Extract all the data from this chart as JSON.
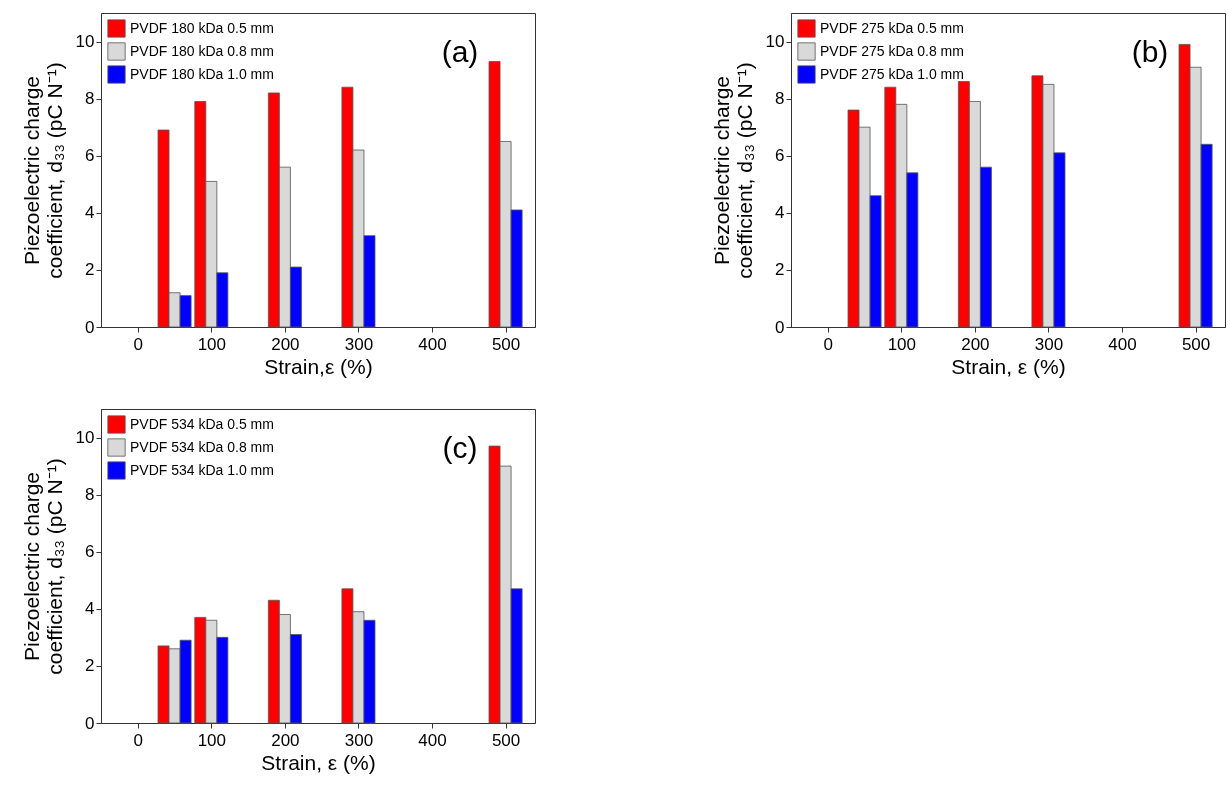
{
  "chart_data": [
    {
      "type": "bar",
      "x": [
        50,
        100,
        200,
        300,
        500
      ],
      "xlabel": "Strain,ε (%)",
      "ylabel": "Piezoelectric charge coefficient, d₃₃ (pC N⁻¹)",
      "annotations": [
        "(a)"
      ],
      "xlim": [
        -50,
        540
      ],
      "xticks": [
        0,
        100,
        200,
        300,
        400,
        500
      ],
      "ylim": [
        0,
        11
      ],
      "yticks": [
        0,
        2,
        4,
        6,
        8,
        10
      ],
      "legend": "top left",
      "series": [
        {
          "name": "PVDF 180 kDa 0.5 mm",
          "color": "#ff0000",
          "values": [
            6.9,
            7.9,
            8.2,
            8.4,
            9.3
          ]
        },
        {
          "name": "PVDF 180 kDa 0.8 mm",
          "color": "#d9d9d9",
          "values": [
            1.2,
            5.1,
            5.6,
            6.2,
            6.5
          ]
        },
        {
          "name": "PVDF 180 kDa 1.0 mm",
          "color": "#0000ff",
          "values": [
            1.1,
            1.9,
            2.1,
            3.2,
            4.1
          ]
        }
      ]
    },
    {
      "type": "bar",
      "x": [
        50,
        100,
        200,
        300,
        500
      ],
      "xlabel": "Strain, ε (%)",
      "ylabel": "Piezoelectric charge coefficient, d₃₃ (pC N⁻¹)",
      "annotations": [
        "(b)"
      ],
      "xlim": [
        -50,
        540
      ],
      "xticks": [
        0,
        100,
        200,
        300,
        400,
        500
      ],
      "ylim": [
        0,
        11
      ],
      "yticks": [
        0,
        2,
        4,
        6,
        8,
        10
      ],
      "legend": "top left",
      "series": [
        {
          "name": "PVDF 275 kDa 0.5 mm",
          "color": "#ff0000",
          "values": [
            7.6,
            8.4,
            8.6,
            8.8,
            9.9
          ]
        },
        {
          "name": "PVDF 275 kDa 0.8 mm",
          "color": "#d9d9d9",
          "values": [
            7.0,
            7.8,
            7.9,
            8.5,
            9.1
          ]
        },
        {
          "name": "PVDF 275 kDa 1.0 mm",
          "color": "#0000ff",
          "values": [
            4.6,
            5.4,
            5.6,
            6.1,
            6.4
          ]
        }
      ]
    },
    {
      "type": "bar",
      "x": [
        50,
        100,
        200,
        300,
        500
      ],
      "xlabel": "Strain, ε (%)",
      "ylabel": "Piezoelectric charge coefficient, d₃₃ (pC N⁻¹)",
      "annotations": [
        "(c)"
      ],
      "xlim": [
        -50,
        540
      ],
      "xticks": [
        0,
        100,
        200,
        300,
        400,
        500
      ],
      "ylim": [
        0,
        11
      ],
      "yticks": [
        0,
        2,
        4,
        6,
        8,
        10
      ],
      "legend": "top left",
      "series": [
        {
          "name": "PVDF 534 kDa 0.5 mm",
          "color": "#ff0000",
          "values": [
            2.7,
            3.7,
            4.3,
            4.7,
            9.7
          ]
        },
        {
          "name": "PVDF 534 kDa 0.8 mm",
          "color": "#d9d9d9",
          "values": [
            2.6,
            3.6,
            3.8,
            3.9,
            9.0
          ]
        },
        {
          "name": "PVDF 534 kDa 1.0 mm",
          "color": "#0000ff",
          "values": [
            2.9,
            3.0,
            3.1,
            3.6,
            4.7
          ]
        }
      ]
    }
  ]
}
